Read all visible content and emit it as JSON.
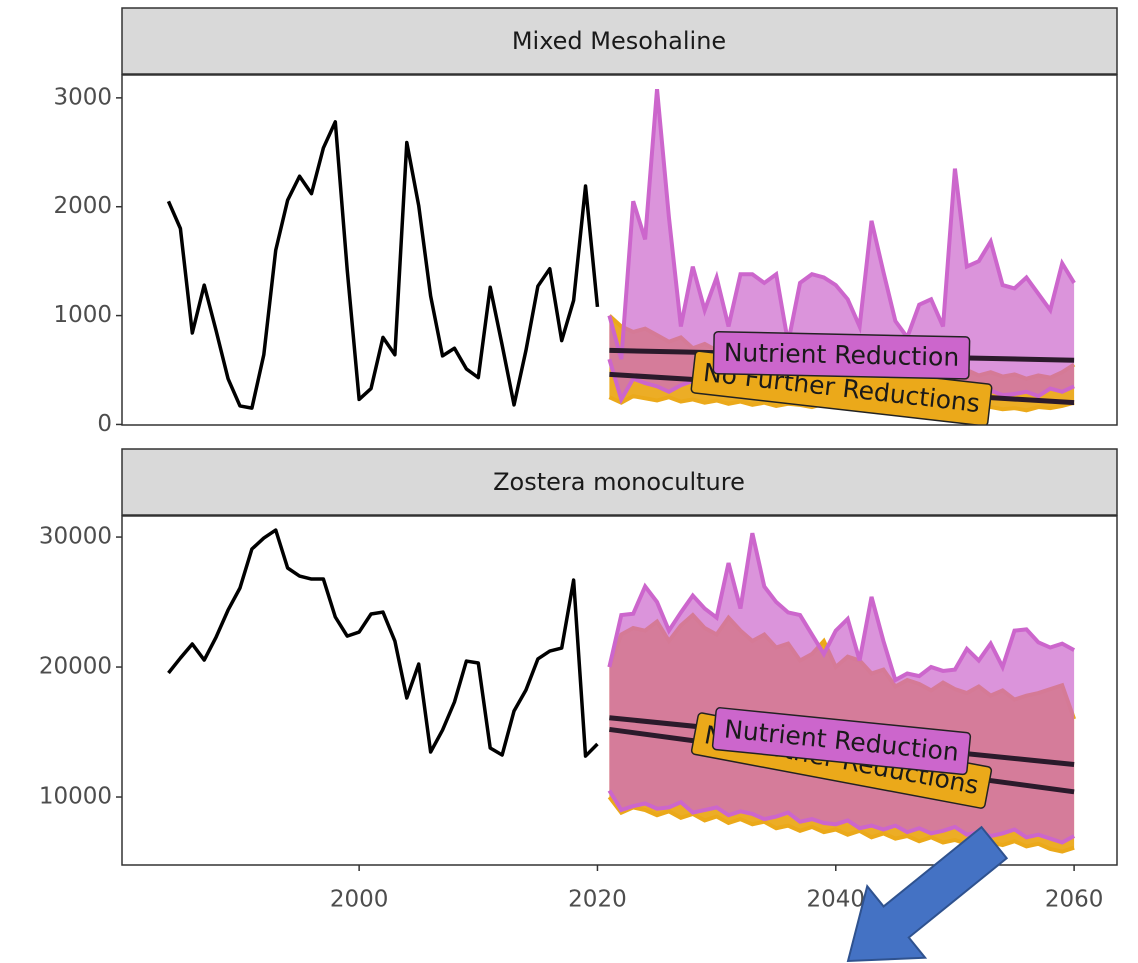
{
  "chart_data": [
    {
      "type": "line",
      "title": "Mixed Mesohaline",
      "color": "#000000",
      "x": [
        1984,
        1985,
        1986,
        1987,
        1988,
        1989,
        1990,
        1991,
        1992,
        1993,
        1994,
        1995,
        1996,
        1997,
        1998,
        1999,
        2000,
        2001,
        2002,
        2003,
        2004,
        2005,
        2006,
        2007,
        2008,
        2009,
        2010,
        2011,
        2012,
        2013,
        2014,
        2015,
        2016,
        2017,
        2018,
        2019,
        2020
      ],
      "values": [
        2050,
        1800,
        840,
        1280,
        860,
        420,
        170,
        150,
        640,
        1600,
        2060,
        2280,
        2120,
        2540,
        2780,
        1420,
        230,
        330,
        800,
        640,
        2590,
        2010,
        1180,
        630,
        700,
        510,
        430,
        1260,
        730,
        180,
        680,
        1270,
        1430,
        770,
        1140,
        2190,
        1080
      ],
      "xlim": [
        1980.1,
        2063.6
      ],
      "ylim": [
        -5,
        3210
      ],
      "yticks": [
        0,
        1000,
        2000,
        3000
      ],
      "projection": {
        "x": [
          2021,
          2022,
          2023,
          2024,
          2025,
          2026,
          2027,
          2028,
          2029,
          2030,
          2031,
          2032,
          2033,
          2034,
          2035,
          2036,
          2037,
          2038,
          2039,
          2040,
          2041,
          2042,
          2043,
          2044,
          2045,
          2046,
          2047,
          2048,
          2049,
          2050,
          2051,
          2052,
          2053,
          2054,
          2055,
          2056,
          2057,
          2058,
          2059,
          2060
        ],
        "trend_x": [
          2021,
          2060
        ],
        "series": [
          {
            "name": "No Further Reductions",
            "color": "#eba91a",
            "upper": [
              1000,
              900,
              850,
              880,
              820,
              760,
              800,
              700,
              740,
              680,
              720,
              650,
              700,
              620,
              660,
              600,
              640,
              580,
              620,
              560,
              600,
              540,
              580,
              520,
              560,
              500,
              540,
              480,
              520,
              460,
              500,
              450,
              480,
              440,
              460,
              420,
              450,
              430,
              480,
              550
            ],
            "lower": [
              250,
              200,
              260,
              240,
              220,
              250,
              210,
              230,
              200,
              220,
              190,
              210,
              180,
              200,
              170,
              190,
              180,
              160,
              190,
              170,
              150,
              180,
              160,
              170,
              150,
              160,
              140,
              170,
              150,
              160,
              140,
              150,
              160,
              140,
              150,
              130,
              160,
              150,
              170,
              200
            ],
            "trend": [
              460,
              200
            ]
          },
          {
            "name": "Nutrient Reduction",
            "color": "#cc66cc",
            "upper": [
              1000,
              600,
              2050,
              1700,
              3080,
              1900,
              900,
              1450,
              1050,
              1350,
              900,
              1380,
              1380,
              1300,
              1380,
              750,
              1300,
              1380,
              1350,
              1280,
              1150,
              900,
              1870,
              1400,
              950,
              800,
              1100,
              1150,
              900,
              2350,
              1450,
              1500,
              1680,
              1280,
              1250,
              1350,
              1200,
              1050,
              1480,
              1300
            ],
            "lower": [
              600,
              230,
              420,
              380,
              350,
              300,
              360,
              400,
              330,
              350,
              300,
              320,
              350,
              340,
              300,
              330,
              360,
              320,
              300,
              340,
              280,
              300,
              330,
              310,
              260,
              300,
              280,
              320,
              300,
              290,
              260,
              300,
              310,
              270,
              280,
              300,
              260,
              330,
              300,
              350
            ],
            "trend": [
              680,
              590
            ]
          }
        ]
      }
    },
    {
      "type": "line",
      "title": "Zostera monoculture",
      "color": "#000000",
      "x": [
        1984,
        1985,
        1986,
        1987,
        1988,
        1989,
        1990,
        1991,
        1992,
        1993,
        1994,
        1995,
        1996,
        1997,
        1998,
        1999,
        2000,
        2001,
        2002,
        2003,
        2004,
        2005,
        2006,
        2007,
        2008,
        2009,
        2010,
        2011,
        2012,
        2013,
        2014,
        2015,
        2016,
        2017,
        2018,
        2019,
        2020
      ],
      "values": [
        19540,
        20690,
        21770,
        20540,
        22310,
        24380,
        26080,
        29080,
        29920,
        30540,
        27620,
        27000,
        26770,
        26770,
        23850,
        22380,
        22690,
        24080,
        24230,
        22000,
        17620,
        20230,
        13460,
        15150,
        17310,
        20460,
        20310,
        13770,
        13230,
        16620,
        18230,
        20620,
        21230,
        21460,
        26690,
        13150,
        14080
      ],
      "xlim": [
        1980.1,
        2063.6
      ],
      "xticks": [
        2000,
        2020,
        2040,
        2060
      ],
      "ylim": [
        4770,
        31620
      ],
      "yticks": [
        10000,
        20000,
        30000
      ],
      "projection": {
        "x": [
          2021,
          2022,
          2023,
          2024,
          2025,
          2026,
          2027,
          2028,
          2029,
          2030,
          2031,
          2032,
          2033,
          2034,
          2035,
          2036,
          2037,
          2038,
          2039,
          2040,
          2041,
          2042,
          2043,
          2044,
          2045,
          2046,
          2047,
          2048,
          2049,
          2050,
          2051,
          2052,
          2053,
          2054,
          2055,
          2056,
          2057,
          2058,
          2059,
          2060
        ],
        "trend_x": [
          2021,
          2060
        ],
        "series": [
          {
            "name": "No Further Reductions",
            "color": "#eba91a",
            "upper": [
              20000,
              22500,
              23000,
              22800,
              23500,
              22000,
              23200,
              24000,
              23000,
              22500,
              23800,
              22800,
              22000,
              22500,
              21500,
              21800,
              20500,
              21000,
              22000,
              20000,
              20800,
              20500,
              19500,
              19800,
              18500,
              19000,
              18700,
              18200,
              18800,
              18300,
              18000,
              18500,
              17800,
              18200,
              17500,
              17800,
              18000,
              18300,
              18600,
              16000
            ],
            "lower": [
              10000,
              8800,
              9200,
              9000,
              8600,
              8900,
              8400,
              8700,
              8200,
              8500,
              8000,
              8300,
              7900,
              8100,
              7600,
              7800,
              7400,
              7700,
              7300,
              7500,
              7100,
              7400,
              6900,
              7200,
              6800,
              7000,
              6600,
              6900,
              6500,
              6700,
              6400,
              6800,
              6500,
              6300,
              6600,
              6200,
              6400,
              6000,
              5800,
              6100
            ],
            "trend": [
              15200,
              10400
            ]
          },
          {
            "name": "Nutrient Reduction",
            "color": "#cc66cc",
            "upper": [
              20000,
              24000,
              24100,
              26200,
              25000,
              22800,
              24200,
              25500,
              24500,
              23800,
              28000,
              24500,
              30300,
              26200,
              25000,
              24200,
              24000,
              22500,
              21000,
              22800,
              23700,
              20500,
              25400,
              22000,
              19000,
              19500,
              19300,
              20000,
              19700,
              19800,
              21400,
              20500,
              21800,
              20000,
              22800,
              22900,
              21900,
              21500,
              21800,
              21300
            ],
            "lower": [
              10500,
              9000,
              9300,
              9500,
              9100,
              9200,
              9600,
              8800,
              9000,
              9200,
              8600,
              8900,
              8700,
              8300,
              8500,
              8800,
              8100,
              8300,
              8000,
              7900,
              8200,
              7600,
              7800,
              7500,
              7800,
              7300,
              7600,
              7200,
              7400,
              7700,
              7100,
              7300,
              7000,
              7200,
              7500,
              6900,
              7100,
              6800,
              6500,
              7000
            ],
            "trend": [
              16100,
              12500
            ]
          }
        ]
      }
    }
  ]
}
